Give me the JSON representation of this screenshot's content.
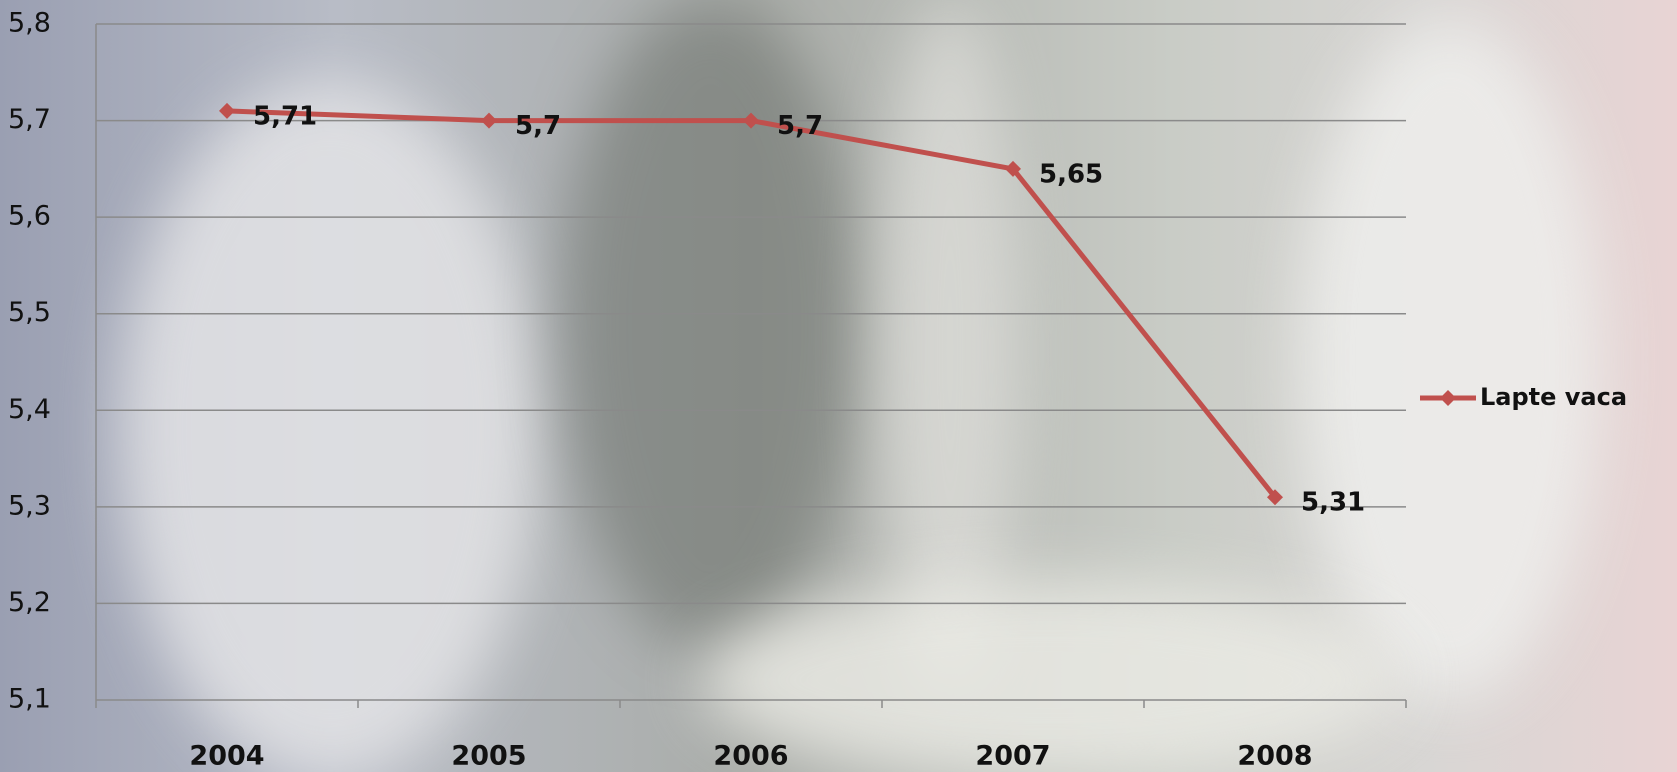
{
  "chart_data": {
    "type": "line",
    "categories": [
      "2004",
      "2005",
      "2006",
      "2007",
      "2008"
    ],
    "series": [
      {
        "name": "Lapte vaca",
        "color": "#c0504d",
        "values": [
          5.71,
          5.7,
          5.7,
          5.65,
          5.31
        ],
        "value_labels": [
          "5,71",
          "5,7",
          "5,7",
          "5,65",
          "5,31"
        ]
      }
    ],
    "ylim": [
      5.1,
      5.8
    ],
    "yticks": [
      {
        "value": 5.1,
        "label": "5,1"
      },
      {
        "value": 5.2,
        "label": "5,2"
      },
      {
        "value": 5.3,
        "label": "5,3"
      },
      {
        "value": 5.4,
        "label": "5,4"
      },
      {
        "value": 5.5,
        "label": "5,5"
      },
      {
        "value": 5.6,
        "label": "5,6"
      },
      {
        "value": 5.7,
        "label": "5,7"
      },
      {
        "value": 5.8,
        "label": "5,8"
      }
    ],
    "grid": true,
    "legend": "right"
  }
}
